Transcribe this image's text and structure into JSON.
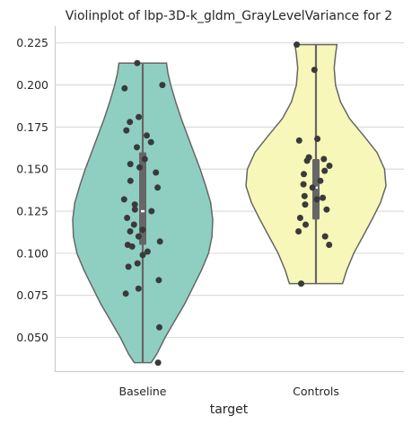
{
  "chart_data": {
    "type": "violin",
    "title": "Violinplot of lbp-3D-k_gldm_GrayLevelVariance for 2",
    "xlabel": "target",
    "ylabel": "",
    "ylim": [
      0.03,
      0.235
    ],
    "yticks": [
      0.05,
      0.075,
      0.1,
      0.125,
      0.15,
      0.175,
      0.2,
      0.225
    ],
    "ytick_labels": [
      "0.050",
      "0.075",
      "0.100",
      "0.125",
      "0.150",
      "0.175",
      "0.200",
      "0.225"
    ],
    "grid": true,
    "categories": [
      "Baseline",
      "Controls"
    ],
    "colors": {
      "Baseline": "#8fcfc2",
      "Controls": "#f6f7b8",
      "outline": "#666666",
      "points": "#3a3a3a",
      "box": "#666666",
      "grid": "#d9d9d9"
    },
    "series": [
      {
        "category": "Baseline",
        "range": [
          0.035,
          0.213
        ],
        "quartiles": [
          0.105,
          0.125,
          0.16
        ],
        "profile": [
          [
            0.035,
            0.12
          ],
          [
            0.04,
            0.2
          ],
          [
            0.05,
            0.32
          ],
          [
            0.06,
            0.46
          ],
          [
            0.07,
            0.6
          ],
          [
            0.08,
            0.72
          ],
          [
            0.09,
            0.84
          ],
          [
            0.1,
            0.94
          ],
          [
            0.11,
            0.99
          ],
          [
            0.12,
            1.0
          ],
          [
            0.13,
            0.97
          ],
          [
            0.14,
            0.9
          ],
          [
            0.15,
            0.82
          ],
          [
            0.16,
            0.73
          ],
          [
            0.17,
            0.64
          ],
          [
            0.18,
            0.55
          ],
          [
            0.19,
            0.47
          ],
          [
            0.2,
            0.4
          ],
          [
            0.207,
            0.36
          ],
          [
            0.213,
            0.34
          ]
        ],
        "points": [
          0.035,
          0.056,
          0.076,
          0.079,
          0.084,
          0.092,
          0.094,
          0.099,
          0.101,
          0.104,
          0.105,
          0.107,
          0.11,
          0.113,
          0.114,
          0.117,
          0.121,
          0.125,
          0.126,
          0.129,
          0.132,
          0.139,
          0.143,
          0.148,
          0.151,
          0.153,
          0.156,
          0.163,
          0.166,
          0.17,
          0.173,
          0.178,
          0.181,
          0.198,
          0.2,
          0.213
        ]
      },
      {
        "category": "Controls",
        "range": [
          0.082,
          0.224
        ],
        "quartiles": [
          0.12,
          0.139,
          0.156
        ],
        "profile": [
          [
            0.082,
            0.38
          ],
          [
            0.09,
            0.44
          ],
          [
            0.1,
            0.54
          ],
          [
            0.11,
            0.67
          ],
          [
            0.12,
            0.8
          ],
          [
            0.13,
            0.92
          ],
          [
            0.14,
            1.0
          ],
          [
            0.15,
            0.98
          ],
          [
            0.16,
            0.87
          ],
          [
            0.17,
            0.68
          ],
          [
            0.18,
            0.48
          ],
          [
            0.19,
            0.35
          ],
          [
            0.2,
            0.28
          ],
          [
            0.21,
            0.26
          ],
          [
            0.218,
            0.28
          ],
          [
            0.224,
            0.3
          ]
        ],
        "points": [
          0.082,
          0.105,
          0.11,
          0.113,
          0.117,
          0.121,
          0.126,
          0.129,
          0.132,
          0.133,
          0.134,
          0.139,
          0.141,
          0.143,
          0.147,
          0.149,
          0.152,
          0.155,
          0.156,
          0.157,
          0.167,
          0.168,
          0.209,
          0.224
        ]
      }
    ]
  }
}
